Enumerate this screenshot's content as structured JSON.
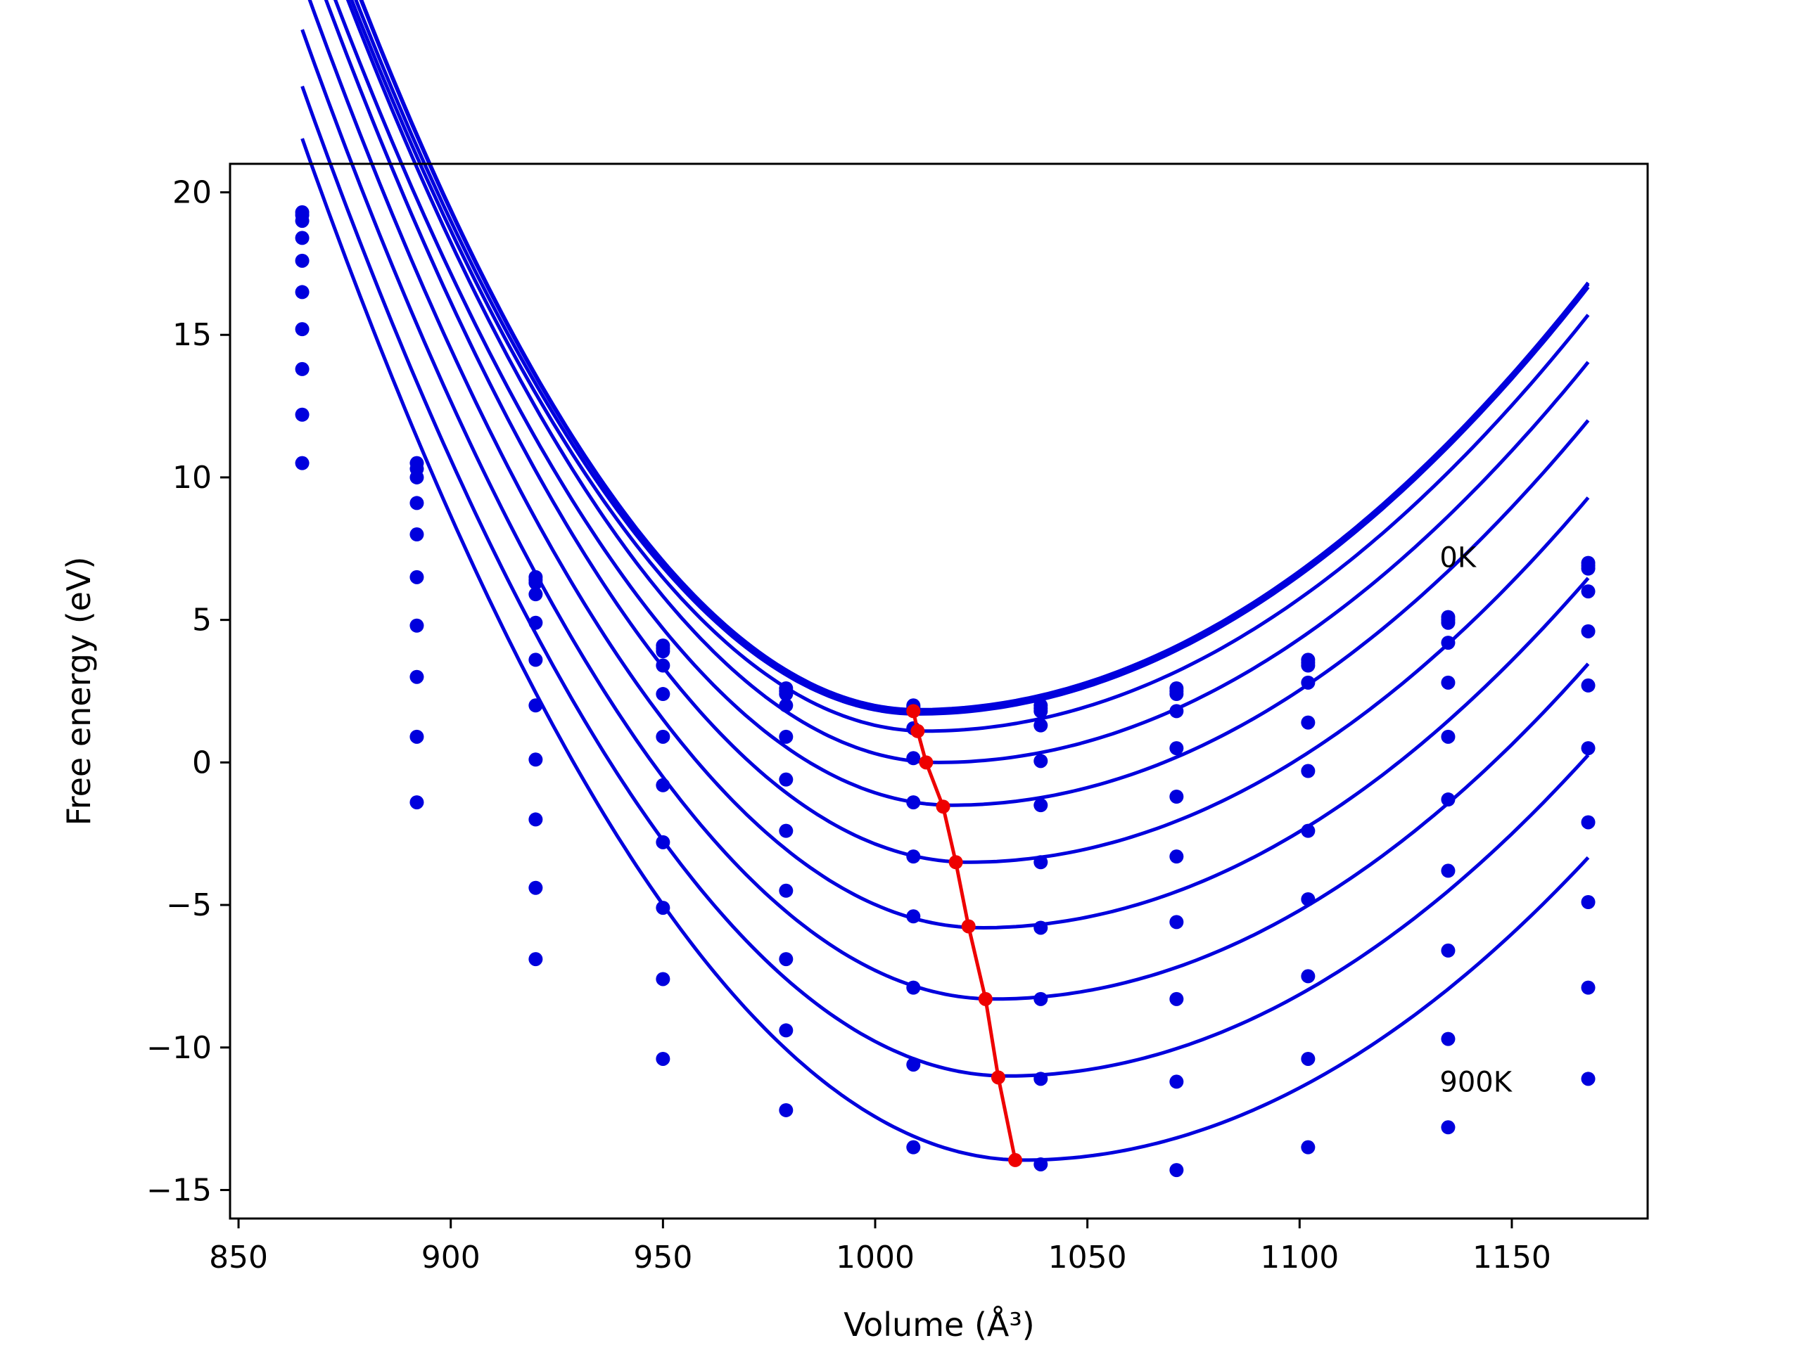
{
  "chart_data": {
    "type": "scatter",
    "title": "",
    "xlabel": "Volume (Å³)",
    "ylabel": "Free energy (eV)",
    "xlim": [
      848,
      1182
    ],
    "ylim": [
      -16,
      21
    ],
    "grid": false,
    "legend": "none",
    "xticks": [
      {
        "value": 850,
        "label": "850"
      },
      {
        "value": 900,
        "label": "900"
      },
      {
        "value": 950,
        "label": "950"
      },
      {
        "value": 1000,
        "label": "1000"
      },
      {
        "value": 1050,
        "label": "1050"
      },
      {
        "value": 1100,
        "label": "1100"
      },
      {
        "value": 1150,
        "label": "1150"
      }
    ],
    "yticks": [
      {
        "value": 20,
        "label": "20"
      },
      {
        "value": 15,
        "label": "15"
      },
      {
        "value": 10,
        "label": "10"
      },
      {
        "value": 5,
        "label": "5"
      },
      {
        "value": 0,
        "label": "0"
      },
      {
        "value": -5,
        "label": "−5"
      },
      {
        "value": -10,
        "label": "−10"
      },
      {
        "value": -15,
        "label": "−15"
      }
    ],
    "annotations": [
      {
        "text": "0K",
        "x": 1133,
        "y": 7.2
      },
      {
        "text": "900K",
        "x": 1133,
        "y": -11.2
      }
    ],
    "x": [
      865,
      892,
      920,
      950,
      979,
      1009,
      1039,
      1071,
      1102,
      1135,
      1168
    ],
    "series": [
      {
        "color": "#0000dd",
        "points": [
          19.3,
          10.5,
          6.5,
          4.1,
          2.6,
          2.0,
          2.0,
          2.6,
          3.6,
          5.1,
          7.0
        ],
        "fit": {
          "vmin": 1010,
          "emin": 1.85,
          "a": 14.5,
          "c": 6.0,
          "vstart": 865,
          "vend": 1168
        }
      },
      {
        "color": "#0000dd",
        "points": [
          19.2,
          10.3,
          6.4,
          4.0,
          2.5,
          1.95,
          1.9,
          2.5,
          3.5,
          5.0,
          6.9
        ],
        "fit": {
          "vmin": 1010,
          "emin": 1.8,
          "a": 14.5,
          "c": 6.0,
          "vstart": 865,
          "vend": 1168
        }
      },
      {
        "color": "#0000dd",
        "points": [
          19.0,
          10.0,
          6.3,
          3.9,
          2.4,
          1.9,
          1.8,
          2.4,
          3.4,
          4.9,
          6.8
        ],
        "fit": {
          "vmin": 1010,
          "emin": 1.7,
          "a": 14.3,
          "c": 6.0,
          "vstart": 865,
          "vend": 1168
        }
      },
      {
        "color": "#0000dd",
        "points": [
          18.4,
          9.1,
          5.9,
          3.4,
          2.0,
          1.2,
          1.3,
          1.8,
          2.8,
          4.2,
          6.0
        ],
        "fit": {
          "vmin": 1012,
          "emin": 1.1,
          "a": 14.0,
          "c": 6.0,
          "vstart": 865,
          "vend": 1168
        }
      },
      {
        "color": "#0000dd",
        "points": [
          17.6,
          8.0,
          4.9,
          2.4,
          0.9,
          0.15,
          0.05,
          0.5,
          1.4,
          2.8,
          4.6
        ],
        "fit": {
          "vmin": 1015,
          "emin": 0.0,
          "a": 13.8,
          "c": 6.0,
          "vstart": 865,
          "vend": 1168
        }
      },
      {
        "color": "#0000dd",
        "points": [
          16.5,
          6.5,
          3.6,
          0.9,
          -0.6,
          -1.4,
          -1.5,
          -1.2,
          -0.3,
          0.9,
          2.7
        ],
        "fit": {
          "vmin": 1018,
          "emin": -1.5,
          "a": 13.4,
          "c": 6.0,
          "vstart": 865,
          "vend": 1168
        }
      },
      {
        "color": "#0000dd",
        "points": [
          15.2,
          4.8,
          2.0,
          -0.8,
          -2.4,
          -3.3,
          -3.5,
          -3.3,
          -2.4,
          -1.3,
          0.5
        ],
        "fit": {
          "vmin": 1022,
          "emin": -3.5,
          "a": 13.2,
          "c": 6.0,
          "vstart": 865,
          "vend": 1168
        }
      },
      {
        "color": "#0000dd",
        "points": [
          13.8,
          3.0,
          0.1,
          -2.8,
          -4.5,
          -5.4,
          -5.8,
          -5.6,
          -4.8,
          -3.8,
          -2.1
        ],
        "fit": {
          "vmin": 1025,
          "emin": -5.8,
          "a": 13.0,
          "c": 6.0,
          "vstart": 865,
          "vend": 1168
        }
      },
      {
        "color": "#0000dd",
        "points": [
          12.2,
          0.9,
          -2.0,
          -5.1,
          -6.9,
          -7.9,
          -8.3,
          -8.3,
          -7.5,
          -6.6,
          -4.9
        ],
        "fit": {
          "vmin": 1028,
          "emin": -8.3,
          "a": 12.8,
          "c": 6.0,
          "vstart": 865,
          "vend": 1168
        }
      },
      {
        "color": "#0000dd",
        "points": [
          10.5,
          -1.4,
          -4.4,
          -7.6,
          -9.4,
          -10.6,
          -11.1,
          -11.2,
          -10.4,
          -9.7,
          -7.9
        ],
        "fit": {
          "vmin": 1031,
          "emin": -11.0,
          "a": 12.6,
          "c": 6.0,
          "vstart": 865,
          "vend": 1168
        }
      },
      {
        "color": "#0000dd",
        "points": [
          null,
          null,
          -6.9,
          -10.4,
          -12.2,
          -13.5,
          -14.1,
          -14.3,
          -13.5,
          -12.8,
          -11.1
        ],
        "fit": {
          "vmin": 1035,
          "emin": -13.95,
          "a": 12.4,
          "c": 6.0,
          "vstart": 865,
          "vend": 1168
        }
      }
    ],
    "minima": {
      "color": "#ee0000",
      "x": [
        1009,
        1010,
        1012,
        1016,
        1019,
        1022,
        1026,
        1029,
        1033
      ],
      "y": [
        1.8,
        1.1,
        0.0,
        -1.55,
        -3.5,
        -5.75,
        -8.3,
        -11.05,
        -13.95
      ]
    }
  }
}
